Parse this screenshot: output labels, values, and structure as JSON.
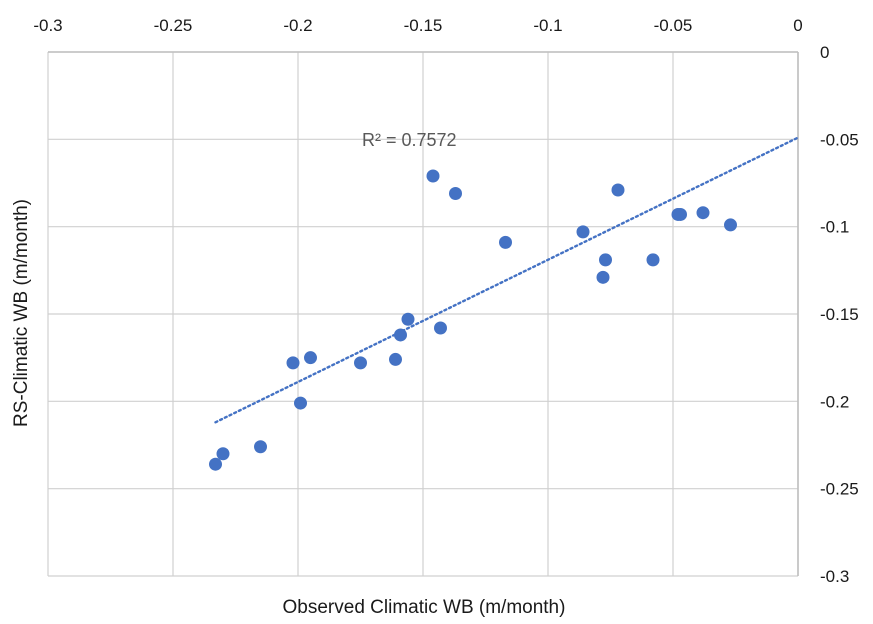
{
  "chart_data": {
    "type": "scatter",
    "title": "",
    "xlabel": "Observed Climatic WB (m/month)",
    "ylabel": "RS-Climatic WB (m/month)",
    "xlim": [
      -0.3,
      0
    ],
    "ylim": [
      -0.3,
      0
    ],
    "x_ticks": [
      -0.3,
      -0.25,
      -0.2,
      -0.15,
      -0.1,
      -0.05,
      0
    ],
    "x_tick_labels": [
      "-0.3",
      "-0.25",
      "-0.2",
      "-0.15",
      "-0.1",
      "-0.05",
      "0"
    ],
    "y_ticks": [
      0,
      -0.05,
      -0.1,
      -0.15,
      -0.2,
      -0.25,
      -0.3
    ],
    "y_tick_labels": [
      "0",
      "-0.05",
      "-0.1",
      "-0.15",
      "-0.2",
      "-0.25",
      "-0.3"
    ],
    "x_axis_position": "top",
    "y_axis_position": "right",
    "grid": true,
    "marker_color": "#4472c4",
    "trendline": {
      "type": "linear",
      "style": "dotted",
      "color": "#4472c4",
      "x": [
        -0.233,
        0
      ],
      "y": [
        -0.212,
        -0.049
      ],
      "r2_label": "R² = 0.7572"
    },
    "points": [
      {
        "x": -0.233,
        "y": -0.236
      },
      {
        "x": -0.23,
        "y": -0.23
      },
      {
        "x": -0.215,
        "y": -0.226
      },
      {
        "x": -0.202,
        "y": -0.178
      },
      {
        "x": -0.195,
        "y": -0.175
      },
      {
        "x": -0.199,
        "y": -0.201
      },
      {
        "x": -0.175,
        "y": -0.178
      },
      {
        "x": -0.161,
        "y": -0.176
      },
      {
        "x": -0.159,
        "y": -0.162
      },
      {
        "x": -0.156,
        "y": -0.153
      },
      {
        "x": -0.143,
        "y": -0.158
      },
      {
        "x": -0.146,
        "y": -0.071
      },
      {
        "x": -0.137,
        "y": -0.081
      },
      {
        "x": -0.117,
        "y": -0.109
      },
      {
        "x": -0.086,
        "y": -0.103
      },
      {
        "x": -0.072,
        "y": -0.079
      },
      {
        "x": -0.077,
        "y": -0.119
      },
      {
        "x": -0.078,
        "y": -0.129
      },
      {
        "x": -0.058,
        "y": -0.119
      },
      {
        "x": -0.047,
        "y": -0.093
      },
      {
        "x": -0.048,
        "y": -0.093
      },
      {
        "x": -0.038,
        "y": -0.092
      },
      {
        "x": -0.027,
        "y": -0.099
      }
    ]
  }
}
